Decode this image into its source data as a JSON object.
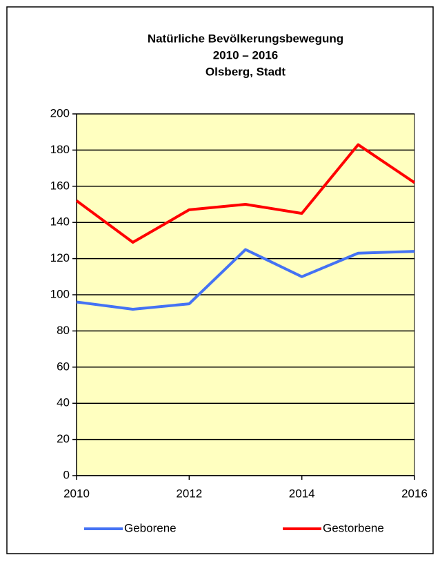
{
  "chart_data": {
    "type": "line",
    "title": [
      "Natürliche Bevölkerungsbewegung",
      "2010 – 2016",
      "Olsberg, Stadt"
    ],
    "x": [
      2010,
      2011,
      2012,
      2013,
      2014,
      2015,
      2016
    ],
    "series": [
      {
        "name": "Geborene",
        "color": "#4472f4",
        "values": [
          96,
          92,
          95,
          125,
          110,
          123,
          124
        ]
      },
      {
        "name": "Gestorbene",
        "color": "#ff0000",
        "values": [
          152,
          129,
          147,
          150,
          145,
          183,
          162
        ]
      }
    ],
    "xlim": [
      2010,
      2016
    ],
    "xticks": [
      2010,
      2012,
      2014,
      2016
    ],
    "ylim": [
      0,
      200
    ],
    "yticks": [
      0,
      20,
      40,
      60,
      80,
      100,
      120,
      140,
      160,
      180,
      200
    ],
    "grid": true,
    "plot_background": "#ffffc0",
    "legend": "bottom"
  }
}
